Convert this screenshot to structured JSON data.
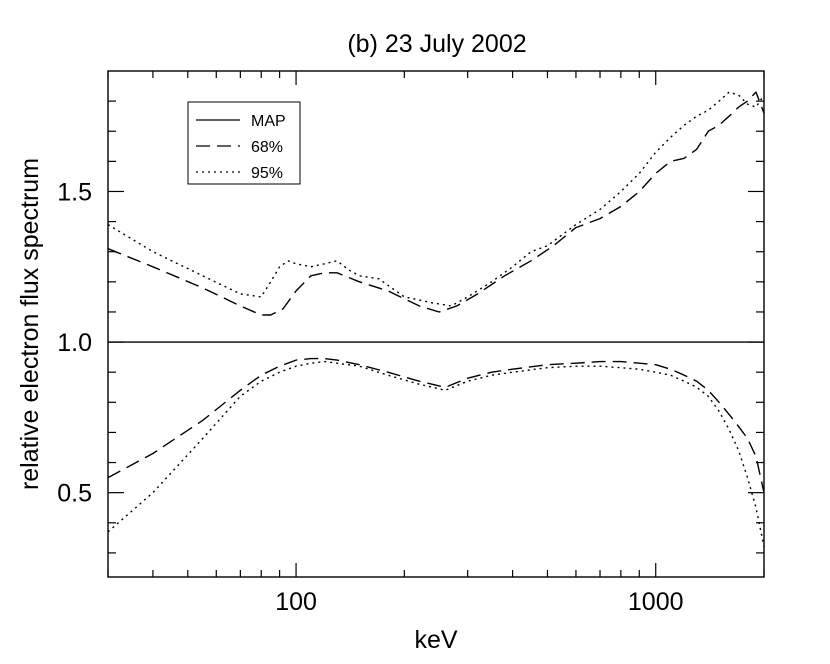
{
  "chart_data": {
    "type": "line",
    "title": "(b) 23 July 2002",
    "xlabel": "keV",
    "ylabel": "relative electron flux spectrum",
    "xscale": "log",
    "xlim": [
      30,
      2000
    ],
    "ylim": [
      0.22,
      1.9
    ],
    "x_ticks": [
      100,
      1000
    ],
    "x_tick_labels": [
      "100",
      "1000"
    ],
    "y_ticks": [
      0.5,
      1.0,
      1.5
    ],
    "y_tick_labels": [
      "0.5",
      "1.0",
      "1.5"
    ],
    "legend_position": "top-left",
    "series": [
      {
        "name": "MAP",
        "style": "solid",
        "band": "center",
        "x": [
          30,
          2000
        ],
        "y": [
          1.0,
          1.0
        ]
      },
      {
        "name": "68%",
        "style": "dashed",
        "band": "upper",
        "x": [
          30,
          40,
          55,
          70,
          80,
          85,
          92,
          100,
          110,
          120,
          130,
          150,
          180,
          220,
          250,
          280,
          320,
          380,
          450,
          520,
          600,
          700,
          800,
          900,
          1000,
          1100,
          1200,
          1300,
          1400,
          1500,
          1600,
          1700,
          1800,
          1900,
          2000
        ],
        "y": [
          1.31,
          1.25,
          1.18,
          1.12,
          1.09,
          1.09,
          1.11,
          1.17,
          1.22,
          1.23,
          1.23,
          1.2,
          1.17,
          1.12,
          1.1,
          1.12,
          1.16,
          1.22,
          1.27,
          1.32,
          1.38,
          1.41,
          1.45,
          1.5,
          1.56,
          1.6,
          1.61,
          1.64,
          1.7,
          1.72,
          1.75,
          1.78,
          1.8,
          1.83,
          1.76
        ]
      },
      {
        "name": "68%",
        "style": "dashed",
        "band": "lower",
        "x": [
          30,
          40,
          55,
          70,
          80,
          90,
          100,
          110,
          120,
          130,
          150,
          180,
          220,
          260,
          300,
          350,
          400,
          500,
          600,
          700,
          800,
          900,
          1000,
          1100,
          1200,
          1300,
          1400,
          1500,
          1600,
          1700,
          1800,
          1900,
          2000
        ],
        "y": [
          0.55,
          0.63,
          0.74,
          0.84,
          0.89,
          0.92,
          0.94,
          0.945,
          0.945,
          0.94,
          0.925,
          0.9,
          0.87,
          0.85,
          0.88,
          0.9,
          0.91,
          0.925,
          0.93,
          0.935,
          0.935,
          0.93,
          0.925,
          0.91,
          0.89,
          0.87,
          0.84,
          0.8,
          0.76,
          0.72,
          0.68,
          0.62,
          0.5
        ]
      },
      {
        "name": "95%",
        "style": "dotted",
        "band": "upper",
        "x": [
          30,
          40,
          55,
          70,
          80,
          85,
          90,
          95,
          100,
          110,
          120,
          130,
          140,
          150,
          170,
          200,
          240,
          270,
          300,
          350,
          400,
          450,
          500,
          600,
          700,
          800,
          900,
          1000,
          1100,
          1200,
          1300,
          1400,
          1500,
          1600,
          1700,
          1800,
          1900,
          2000
        ],
        "y": [
          1.39,
          1.3,
          1.22,
          1.16,
          1.15,
          1.2,
          1.25,
          1.27,
          1.26,
          1.25,
          1.26,
          1.27,
          1.24,
          1.22,
          1.21,
          1.15,
          1.13,
          1.12,
          1.15,
          1.2,
          1.25,
          1.3,
          1.32,
          1.39,
          1.44,
          1.5,
          1.56,
          1.63,
          1.68,
          1.72,
          1.75,
          1.77,
          1.8,
          1.83,
          1.82,
          1.79,
          1.78,
          1.82
        ]
      },
      {
        "name": "95%",
        "style": "dotted",
        "band": "lower",
        "x": [
          30,
          40,
          55,
          70,
          80,
          90,
          100,
          110,
          120,
          130,
          150,
          180,
          220,
          260,
          300,
          350,
          400,
          500,
          600,
          700,
          800,
          900,
          1000,
          1100,
          1200,
          1300,
          1400,
          1500,
          1600,
          1700,
          1800,
          1900,
          2000
        ],
        "y": [
          0.37,
          0.5,
          0.68,
          0.82,
          0.87,
          0.9,
          0.92,
          0.93,
          0.935,
          0.93,
          0.92,
          0.89,
          0.86,
          0.84,
          0.87,
          0.89,
          0.9,
          0.915,
          0.92,
          0.92,
          0.915,
          0.91,
          0.9,
          0.89,
          0.87,
          0.85,
          0.82,
          0.77,
          0.71,
          0.64,
          0.55,
          0.45,
          0.32
        ]
      }
    ],
    "legend": [
      {
        "label": "MAP",
        "style": "solid"
      },
      {
        "label": "68%",
        "style": "dashed"
      },
      {
        "label": "95%",
        "style": "dotted"
      }
    ]
  }
}
